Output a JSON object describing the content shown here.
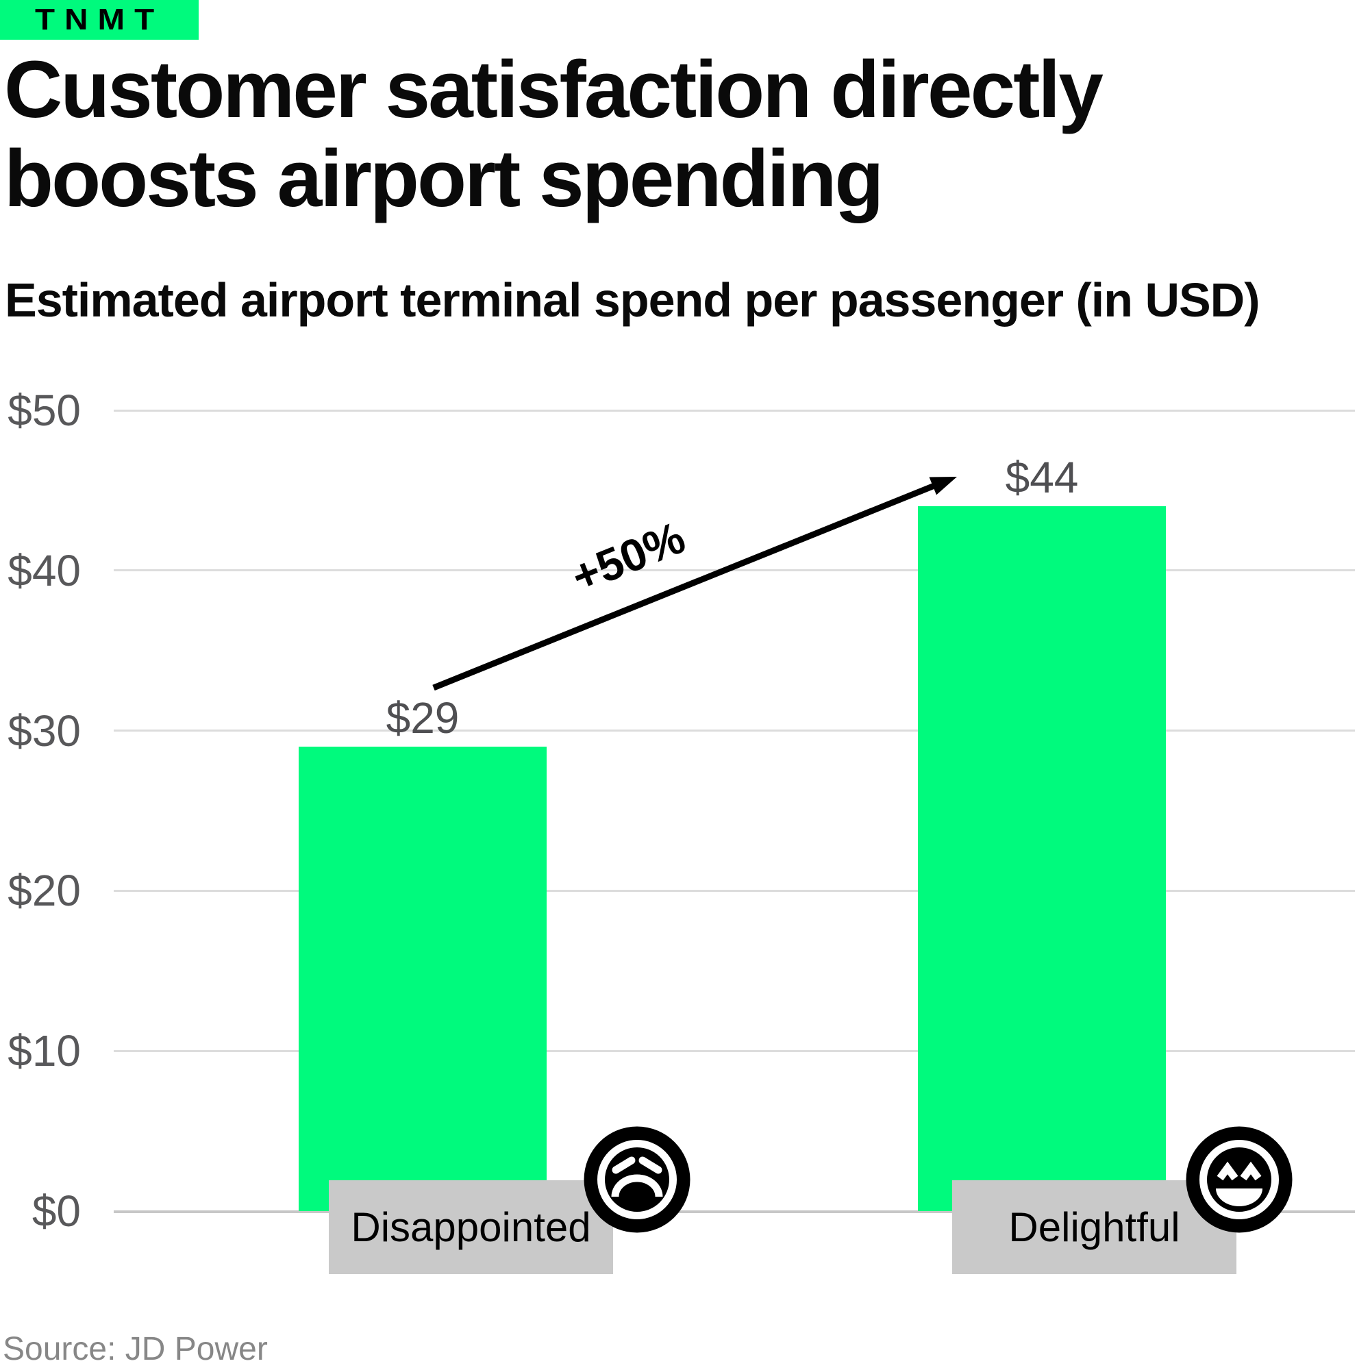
{
  "header": {
    "logo_text": "TNMT",
    "title": "Customer satisfaction directly boosts airport spending",
    "subtitle": "Estimated airport terminal spend per passenger (in USD)"
  },
  "footer": {
    "source": "Source: JD Power"
  },
  "colors": {
    "accent_green": "#00FA7D",
    "label_box_gray": "#C9C9C9",
    "axis_text_gray": "#58585A",
    "gridline_gray": "#DCDCDC",
    "zero_line_gray": "#C7C7C7",
    "ink_black": "#000000"
  },
  "chart_data": {
    "type": "bar",
    "title": "Estimated airport terminal spend per passenger (in USD)",
    "categories": [
      "Disappointed",
      "Delightful"
    ],
    "values": [
      29,
      44
    ],
    "value_labels": [
      "$29",
      "$44"
    ],
    "annotation": "+50%",
    "y_ticks": [
      "$0",
      "$10",
      "$20",
      "$30",
      "$40",
      "$50"
    ],
    "y_tick_values": [
      0,
      10,
      20,
      30,
      40,
      50
    ],
    "ylim": [
      0,
      50
    ],
    "currency": "USD",
    "grid": "horizontal",
    "legend": "none",
    "icons": [
      "sad-face",
      "happy-face"
    ]
  }
}
